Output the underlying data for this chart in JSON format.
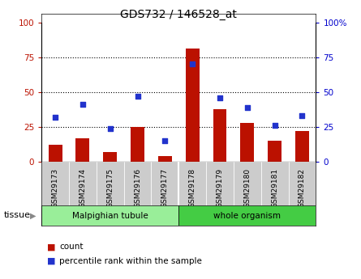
{
  "title": "GDS732 / 146528_at",
  "samples": [
    "GSM29173",
    "GSM29174",
    "GSM29175",
    "GSM29176",
    "GSM29177",
    "GSM29178",
    "GSM29179",
    "GSM29180",
    "GSM29181",
    "GSM29182"
  ],
  "count": [
    12,
    17,
    7,
    25,
    4,
    81,
    38,
    28,
    15,
    22
  ],
  "percentile": [
    32,
    41,
    24,
    47,
    15,
    70,
    46,
    39,
    26,
    33
  ],
  "groups": [
    {
      "label": "Malpighian tubule",
      "n": 5,
      "color": "#99ee99"
    },
    {
      "label": "whole organism",
      "n": 5,
      "color": "#44cc44"
    }
  ],
  "bar_color": "#bb1100",
  "dot_color": "#2233cc",
  "ylim": [
    0,
    100
  ],
  "yticks_left": [
    0,
    25,
    50,
    75,
    100
  ],
  "ytick_labels_left": [
    "0",
    "25",
    "50",
    "75",
    "100"
  ],
  "ytick_labels_right": [
    "0",
    "25",
    "50",
    "75",
    "100%"
  ],
  "grid_lines": [
    25,
    50,
    75
  ],
  "xtick_bg": "#cccccc",
  "plot_bg": "#ffffff",
  "tissue_label": "tissue",
  "legend_items": [
    {
      "label": "count",
      "color": "#bb1100"
    },
    {
      "label": "percentile rank within the sample",
      "color": "#2233cc"
    }
  ],
  "title_color": "#000000",
  "left_axis_color": "#bb1100",
  "right_axis_color": "#0000cc"
}
